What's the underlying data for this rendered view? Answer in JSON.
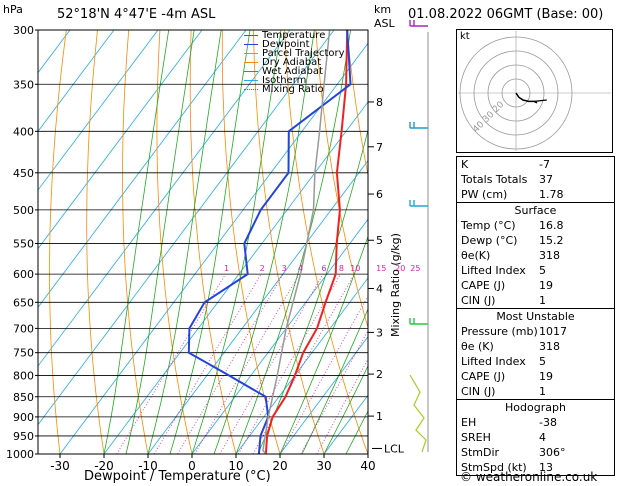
{
  "header": {
    "pressure_unit": "hPa",
    "location": "52°18'N  4°47'E  -4m  ASL",
    "alt_unit_1": "km",
    "alt_unit_2": "ASL",
    "datetime": "01.08.2022  06GMT  (Base: 00)"
  },
  "chart_data": {
    "type": "line",
    "title": "52°18'N  4°47'E  -4m  ASL",
    "xlabel": "Dewpoint / Temperature (°C)",
    "ylabel": "hPa",
    "ylabel_right": "Mixing Ratio (g/kg)",
    "xlim": [
      -35,
      40
    ],
    "ylim": [
      1000,
      300
    ],
    "y_scale": "log",
    "x_ticks": [
      -30,
      -20,
      -10,
      0,
      10,
      20,
      30,
      40
    ],
    "pressure_ticks": [
      300,
      350,
      400,
      450,
      500,
      550,
      600,
      650,
      700,
      750,
      800,
      850,
      900,
      950,
      1000
    ],
    "altitude_ticks": [
      {
        "label": "8",
        "p": 368
      },
      {
        "label": "7",
        "p": 418
      },
      {
        "label": "6",
        "p": 478
      },
      {
        "label": "5",
        "p": 545
      },
      {
        "label": "4",
        "p": 625
      },
      {
        "label": "3",
        "p": 708
      },
      {
        "label": "2",
        "p": 797
      },
      {
        "label": "1",
        "p": 898
      }
    ],
    "lcl_label": "LCL",
    "lcl_p": 990,
    "mixing_ratio_labels": [
      "1",
      "2",
      "3",
      "4",
      "6",
      "8",
      "10",
      "15",
      "20",
      "25"
    ],
    "mixing_ratio_values": [
      1,
      2,
      3,
      4,
      6,
      8,
      10,
      15,
      20,
      25
    ],
    "legend": {
      "placement": "top-right",
      "entries": [
        {
          "name": "Temperature",
          "color": "#ee2222"
        },
        {
          "name": "Dewpoint",
          "color": "#2244dd"
        },
        {
          "name": "Parcel Trajectory",
          "color": "#999999"
        },
        {
          "name": "Dry Adiabat",
          "color": "#ff8800"
        },
        {
          "name": "Wet Adiabat",
          "color": "#22aa22"
        },
        {
          "name": "Isotherm",
          "color": "#22aaee"
        },
        {
          "name": "Mixing Ratio",
          "color": "#dd22aa"
        }
      ]
    },
    "series": [
      {
        "name": "Temperature",
        "color": "#ee2222",
        "points": [
          [
            1000,
            16.8
          ],
          [
            950,
            14
          ],
          [
            900,
            12
          ],
          [
            850,
            11.5
          ],
          [
            800,
            10
          ],
          [
            750,
            8
          ],
          [
            700,
            7
          ],
          [
            650,
            4.5
          ],
          [
            600,
            2
          ],
          [
            550,
            -3
          ],
          [
            500,
            -8
          ],
          [
            450,
            -15
          ],
          [
            400,
            -21
          ],
          [
            350,
            -28
          ],
          [
            300,
            -37
          ]
        ]
      },
      {
        "name": "Dewpoint",
        "color": "#2244dd",
        "points": [
          [
            1000,
            15.2
          ],
          [
            950,
            12.5
          ],
          [
            900,
            11
          ],
          [
            850,
            7
          ],
          [
            800,
            -5
          ],
          [
            750,
            -18
          ],
          [
            700,
            -22
          ],
          [
            650,
            -23
          ],
          [
            600,
            -18
          ],
          [
            550,
            -24
          ],
          [
            500,
            -26
          ],
          [
            450,
            -26
          ],
          [
            400,
            -33
          ],
          [
            350,
            -27
          ],
          [
            300,
            -37
          ]
        ]
      },
      {
        "name": "Parcel Trajectory",
        "color": "#999999",
        "points": [
          [
            1000,
            16.8
          ],
          [
            990,
            15.5
          ],
          [
            900,
            11
          ],
          [
            800,
            6
          ],
          [
            700,
            0
          ],
          [
            600,
            -6
          ],
          [
            500,
            -14
          ],
          [
            450,
            -20
          ],
          [
            400,
            -26
          ],
          [
            350,
            -33
          ],
          [
            300,
            -41
          ]
        ]
      }
    ]
  },
  "hodograph": {
    "label": "kt",
    "ring_labels": [
      "10",
      "20",
      "30",
      "40"
    ],
    "points": [
      [
        0,
        0
      ],
      [
        2,
        -3
      ],
      [
        5,
        -5
      ],
      [
        9,
        -6
      ],
      [
        13,
        -6
      ],
      [
        15,
        -7
      ]
    ]
  },
  "stats": {
    "rows": [
      {
        "k": "K",
        "v": "-7"
      },
      {
        "k": "Totals Totals",
        "v": "37"
      },
      {
        "k": "PW (cm)",
        "v": "1.78"
      }
    ]
  },
  "surface": {
    "title": "Surface",
    "rows": [
      {
        "k": "Temp (°C)",
        "v": "16.8"
      },
      {
        "k": "Dewp (°C)",
        "v": "15.2"
      },
      {
        "k": "θe(K)",
        "v": "318"
      },
      {
        "k": "Lifted Index",
        "v": "5"
      },
      {
        "k": "CAPE (J)",
        "v": "19"
      },
      {
        "k": "CIN (J)",
        "v": "1"
      }
    ]
  },
  "unstable": {
    "title": "Most Unstable",
    "rows": [
      {
        "k": "Pressure (mb)",
        "v": "1017"
      },
      {
        "k": "θe (K)",
        "v": "318"
      },
      {
        "k": "Lifted Index",
        "v": "5"
      },
      {
        "k": "CAPE (J)",
        "v": "19"
      },
      {
        "k": "CIN (J)",
        "v": "1"
      }
    ]
  },
  "hodo_table": {
    "title": "Hodograph",
    "rows": [
      {
        "k": "EH",
        "v": "-38"
      },
      {
        "k": "SREH",
        "v": "4"
      },
      {
        "k": "StmDir",
        "v": "306°"
      },
      {
        "k": "StmSpd (kt)",
        "v": "13"
      }
    ]
  },
  "footer": {
    "copyright": "© weatheronline.co.uk"
  }
}
